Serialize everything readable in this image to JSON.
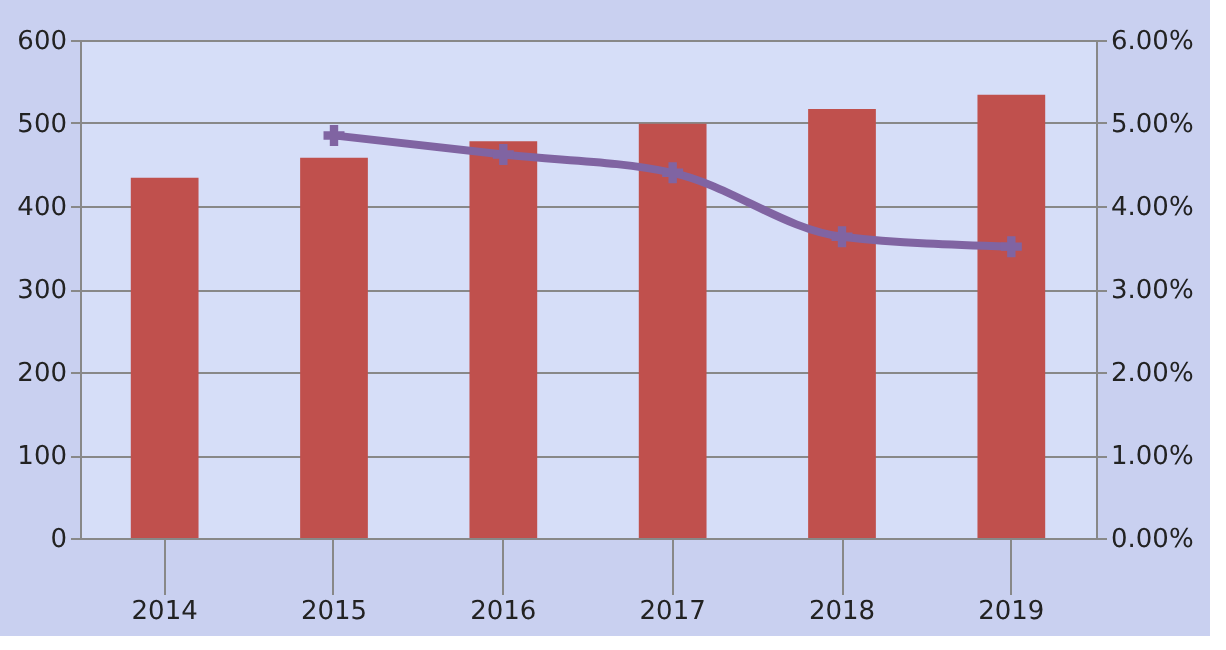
{
  "chart_data": {
    "type": "bar",
    "categories": [
      "2014",
      "2015",
      "2016",
      "2017",
      "2018",
      "2019"
    ],
    "series": [
      {
        "color": "#c0504d",
        "values": [
          434,
          458,
          478,
          499,
          517,
          534
        ]
      },
      {
        "type": "line",
        "axis": "y2",
        "color": "#8064a2",
        "marker": "cross",
        "values": [
          null,
          4.85,
          4.62,
          4.4,
          3.63,
          3.51
        ]
      }
    ],
    "ylim": [
      0,
      600
    ],
    "yticks": [
      0,
      100,
      200,
      300,
      400,
      500,
      600
    ],
    "y2lim": [
      0,
      6
    ],
    "y2ticks": [
      {
        "value": 0,
        "label": "0.00%"
      },
      {
        "value": 1,
        "label": "1.00%"
      },
      {
        "value": 2,
        "label": "2.00%"
      },
      {
        "value": 3,
        "label": "3.00%"
      },
      {
        "value": 4,
        "label": "4.00%"
      },
      {
        "value": 5,
        "label": "5.00%"
      },
      {
        "value": 6,
        "label": "6.00%"
      }
    ],
    "grid": "y"
  }
}
